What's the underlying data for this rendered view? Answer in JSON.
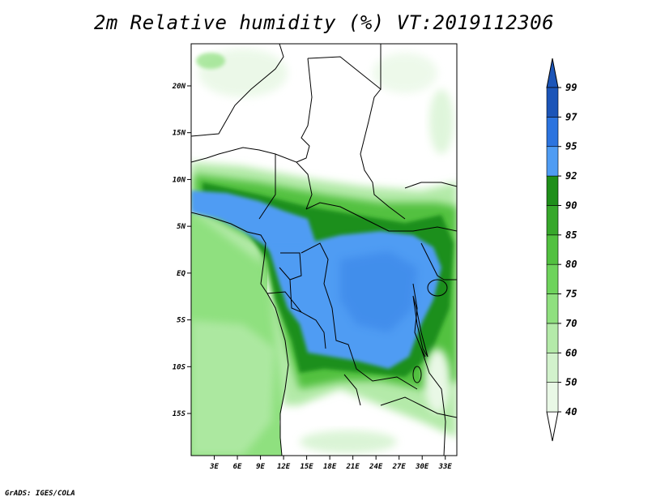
{
  "title": "2m Relative humidity (%) VT:2019112306",
  "credit": "GrADS: IGES/COLA",
  "map": {
    "lat_ticks": [
      {
        "label": "20N",
        "value": 20
      },
      {
        "label": "15N",
        "value": 15
      },
      {
        "label": "10N",
        "value": 10
      },
      {
        "label": "5N",
        "value": 5
      },
      {
        "label": "EQ",
        "value": 0
      },
      {
        "label": "5S",
        "value": -5
      },
      {
        "label": "10S",
        "value": -10
      },
      {
        "label": "15S",
        "value": -15
      }
    ],
    "lon_ticks": [
      {
        "label": "3E",
        "value": 3
      },
      {
        "label": "6E",
        "value": 6
      },
      {
        "label": "9E",
        "value": 9
      },
      {
        "label": "12E",
        "value": 12
      },
      {
        "label": "15E",
        "value": 15
      },
      {
        "label": "18E",
        "value": 18
      },
      {
        "label": "21E",
        "value": 21
      },
      {
        "label": "24E",
        "value": 24
      },
      {
        "label": "27E",
        "value": 27
      },
      {
        "label": "30E",
        "value": 30
      },
      {
        "label": "33E",
        "value": 33
      }
    ],
    "lat_range": [
      -19.5,
      24.5
    ],
    "lon_range": [
      0,
      34.5
    ]
  },
  "colorbar": {
    "levels": [
      {
        "label": "40",
        "color": "#ffffff"
      },
      {
        "label": "50",
        "color": "#e9f8e6"
      },
      {
        "label": "60",
        "color": "#d2f2cc"
      },
      {
        "label": "70",
        "color": "#b4eaa9"
      },
      {
        "label": "75",
        "color": "#8fe07f"
      },
      {
        "label": "80",
        "color": "#6ed35c"
      },
      {
        "label": "85",
        "color": "#52c140"
      },
      {
        "label": "90",
        "color": "#37a82b"
      },
      {
        "label": "92",
        "color": "#1f8f1a"
      },
      {
        "label": "95",
        "color": "#4f9cf3"
      },
      {
        "label": "97",
        "color": "#2c74df"
      },
      {
        "label": "99",
        "color": "#1c55b8"
      }
    ],
    "below_color": "#ffffff",
    "above_color": "#1c55b8"
  }
}
